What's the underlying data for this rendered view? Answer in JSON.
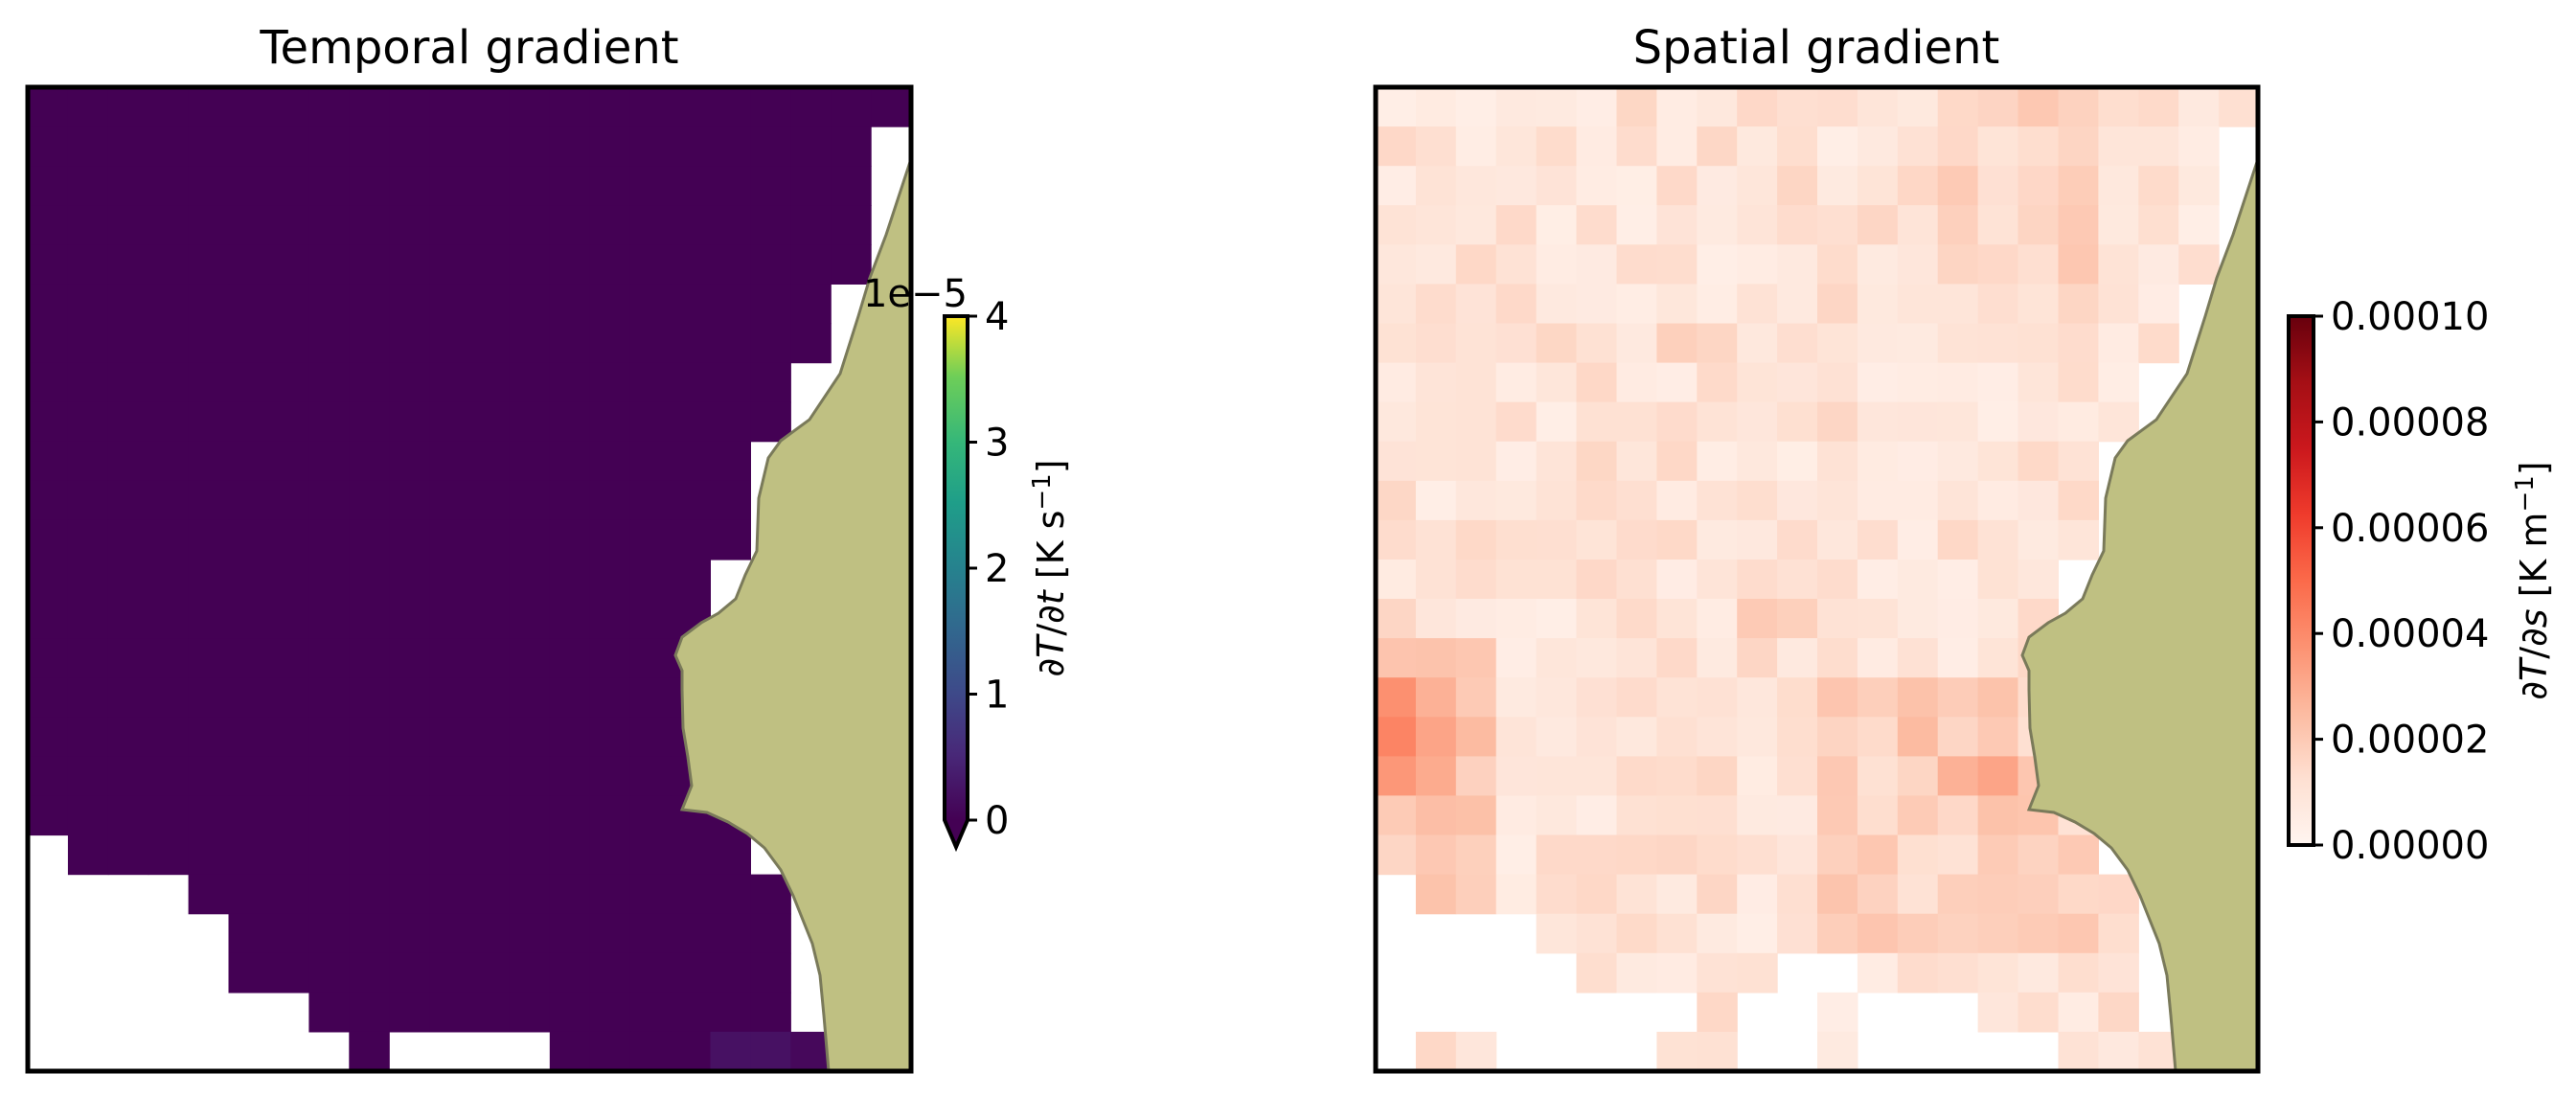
{
  "chart_data": [
    {
      "type": "heatmap",
      "title": "Temporal gradient",
      "colormap": "viridis",
      "cmap_endpoint_colors": [
        "#440154",
        "#fde725"
      ],
      "uniform_value": 0,
      "colorbar": {
        "label": "∂T/∂t [K s⁻¹]",
        "ticks": [
          "0",
          "1",
          "2",
          "3",
          "4"
        ],
        "offset_text": "1e−5",
        "range": [
          0,
          4
        ],
        "extend": "min"
      },
      "faint_cells_value_hint": "slightly above 0 in bottom-right cells"
    },
    {
      "type": "heatmap",
      "title": "Spatial gradient",
      "colormap": "Reds",
      "colorbar": {
        "label": "∂T/∂s [K m⁻¹]",
        "ticks": [
          "0.00000",
          "0.00002",
          "0.00004",
          "0.00006",
          "0.00008",
          "0.00010"
        ],
        "range": [
          0,
          0.0001
        ]
      },
      "grid_values_range": [
        0,
        4e-05
      ]
    }
  ],
  "land_color": "#bfc082",
  "land_edge_color": "#7a7a5a"
}
